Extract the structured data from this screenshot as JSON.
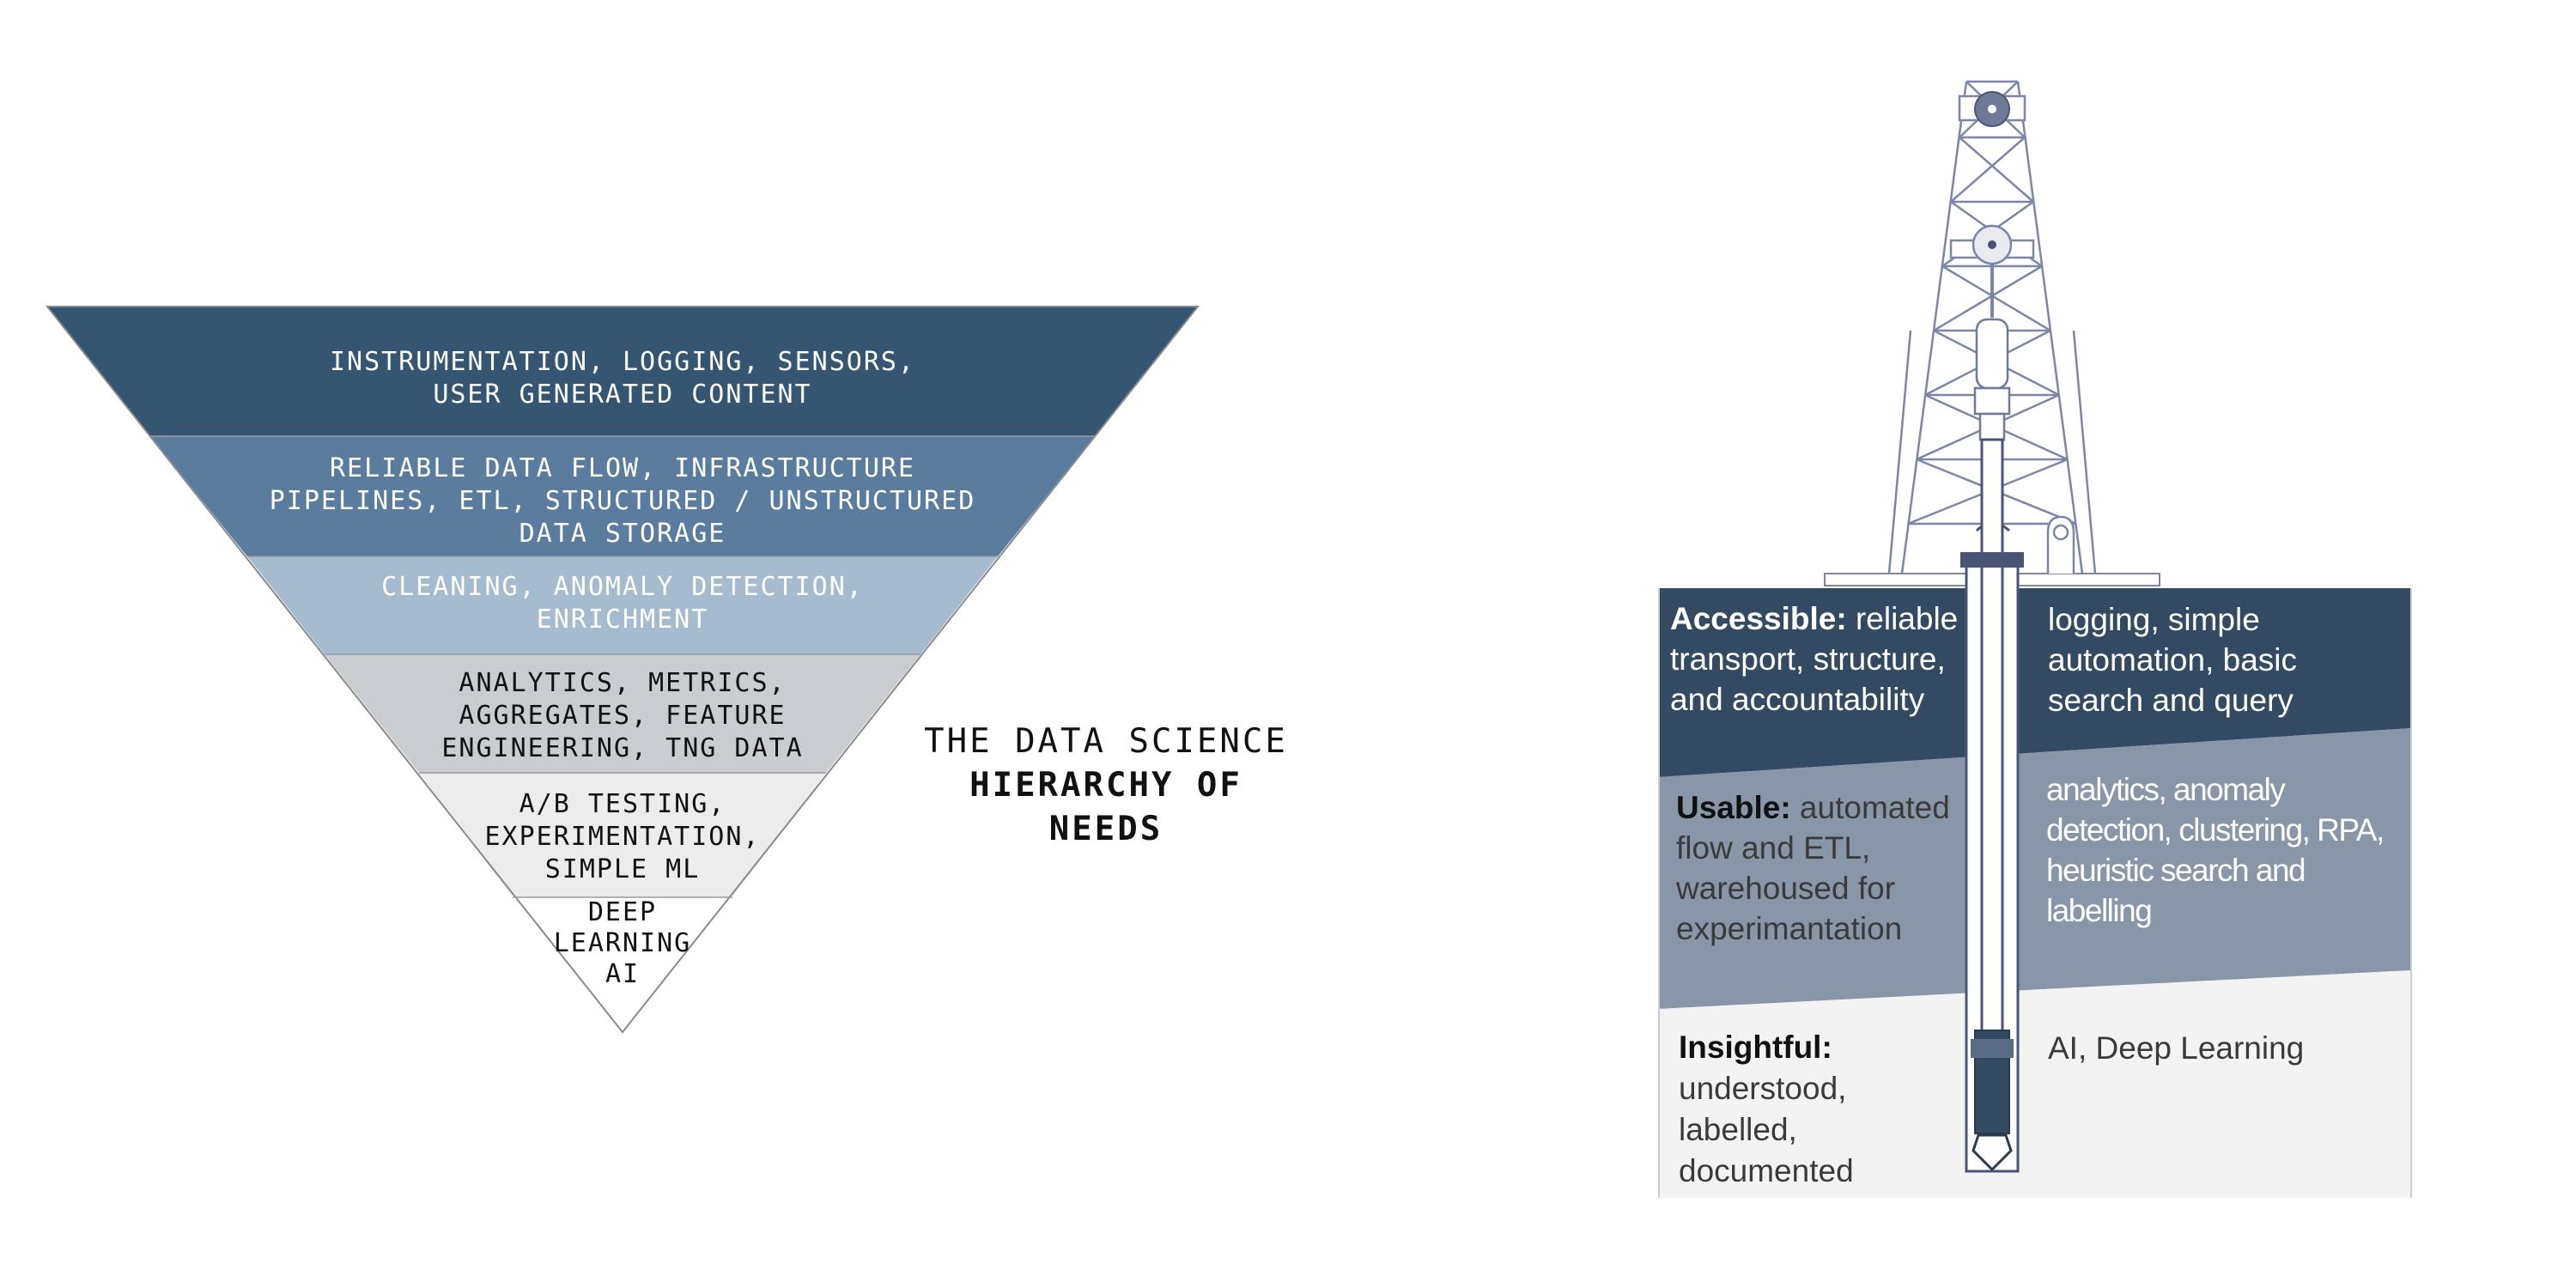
{
  "pyramid": {
    "layers": [
      {
        "text": "INSTRUMENTATION, LOGGING, SENSORS,\nUSER GENERATED CONTENT",
        "color": "#345672"
      },
      {
        "text": "RELIABLE DATA FLOW, INFRASTRUCTURE\nPIPELINES, ETL, STRUCTURED / UNSTRUCTURED\nDATA STORAGE",
        "color": "#5a7c9e"
      },
      {
        "text": "CLEANING, ANOMALY DETECTION,\nENRICHMENT",
        "color": "#a7bbce"
      },
      {
        "text": "ANALYTICS, METRICS,\nAGGREGATES, FEATURE\nENGINEERING, TNG DATA",
        "color": "#c9ccd0"
      },
      {
        "text": "A/B TESTING,\nEXPERIMENTATION,\nSIMPLE ML",
        "color": "#ececec"
      },
      {
        "text": "DEEP\nLEARNING\nAI",
        "color": "#ffffff"
      }
    ]
  },
  "title": {
    "line1": "THE DATA SCIENCE",
    "line2": "HIERARCHY OF NEEDS"
  },
  "rig": {
    "bands": [
      {
        "color": "#344a63"
      },
      {
        "color": "#8896a8"
      },
      {
        "color": "#f3f3f3"
      }
    ],
    "left": {
      "accessible_label": "Accessible:",
      "accessible_rest": " reliable transport, structure, and accountability",
      "usable_label": "Usable:",
      "usable_rest": " automated flow and ETL, warehoused for experimantation",
      "insightful_label": "Insightful:",
      "insightful_rest": "understood, labelled, documented"
    },
    "right": {
      "top": "logging, simple automation, basic search and query",
      "middle": "analytics, anomaly detection, clustering, RPA, heuristic search and labelling",
      "bottom": "AI, Deep Learning"
    }
  }
}
